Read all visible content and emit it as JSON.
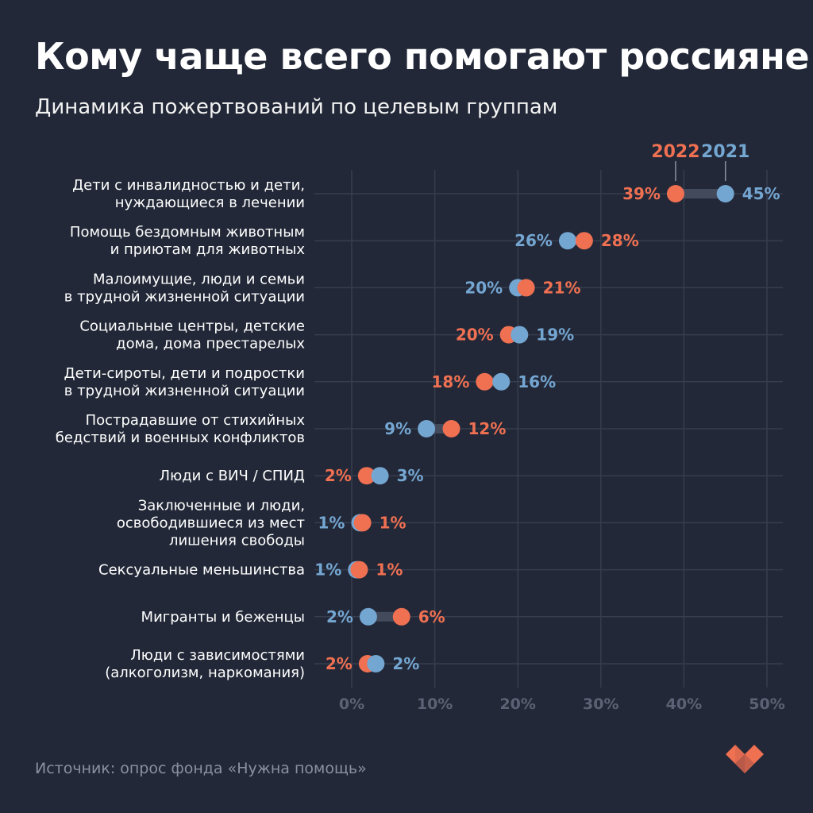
{
  "header": {
    "title": "Кому чаще всего помогают россияне",
    "subtitle": "Динамика пожертвований по целевым группам"
  },
  "footer": {
    "source": "Источник: опрос фонда «Нужна помощь»",
    "logo_icon": "heart-logo-icon"
  },
  "colors": {
    "background": "#222837",
    "series_2022": "#f07052",
    "series_2021": "#74a6d2",
    "connector": "#434a5c",
    "grid": "#363d4e",
    "tick_text": "#5b6275",
    "logo": "#f07052"
  },
  "chart_data": {
    "type": "dot-plot",
    "title": "Кому чаще всего помогают россияне",
    "subtitle": "Динамика пожертвований по целевым группам",
    "xlabel": "",
    "ylabel": "",
    "xlim": [
      0,
      50
    ],
    "x_ticks": [
      0,
      10,
      20,
      30,
      40,
      50
    ],
    "x_tick_labels": [
      "0%",
      "10%",
      "20%",
      "30%",
      "40%",
      "50%"
    ],
    "grid": true,
    "legend": {
      "placement": "top-right",
      "entries": [
        "2022",
        "2021"
      ]
    },
    "series": [
      {
        "name": "2022",
        "color": "#f07052"
      },
      {
        "name": "2021",
        "color": "#74a6d2"
      }
    ],
    "categories": [
      {
        "lines": [
          "Дети с инвалидностью и дети,",
          "нуждающиеся в лечении"
        ],
        "v2022": 39,
        "v2021": 45,
        "label2022": "39%",
        "label2021": "45%",
        "pos2022": 39,
        "pos2021": 45
      },
      {
        "lines": [
          "Помощь бездомным животным",
          "и приютам для животных"
        ],
        "v2022": 28,
        "v2021": 26,
        "label2022": "28%",
        "label2021": "26%",
        "pos2022": 28,
        "pos2021": 26
      },
      {
        "lines": [
          "Малоимущие, люди и семьи",
          "в трудной жизненной ситуации"
        ],
        "v2022": 21,
        "v2021": 20,
        "label2022": "21%",
        "label2021": "20%",
        "pos2022": 21,
        "pos2021": 20
      },
      {
        "lines": [
          "Социальные центры, детские",
          "дома, дома престарелых"
        ],
        "v2022": 20,
        "v2021": 19,
        "label2022": "20%",
        "label2021": "19%",
        "pos2022": 18.9,
        "pos2021": 20.2
      },
      {
        "lines": [
          "Дети-сироты, дети и подростки",
          "в трудной жизненной ситуации"
        ],
        "v2022": 18,
        "v2021": 16,
        "label2022": "18%",
        "label2021": "16%",
        "pos2022": 16,
        "pos2021": 18
      },
      {
        "lines": [
          "Пострадавшие от стихийных",
          "бедствий и военных конфликтов"
        ],
        "v2022": 12,
        "v2021": 9,
        "label2022": "12%",
        "label2021": "9%",
        "pos2022": 12,
        "pos2021": 9
      },
      {
        "lines": [
          "Люди с ВИЧ / СПИД"
        ],
        "v2022": 2,
        "v2021": 3,
        "label2022": "2%",
        "label2021": "3%",
        "pos2022": 1.8,
        "pos2021": 3.4
      },
      {
        "lines": [
          "Заключенные и люди,",
          "освободившиеся из мест",
          "лишения свободы"
        ],
        "v2022": 1,
        "v2021": 1,
        "label2022": "1%",
        "label2021": "1%",
        "pos2022": 1.3,
        "pos2021": 1.0
      },
      {
        "lines": [
          "Сексуальные меньшинства"
        ],
        "v2022": 1,
        "v2021": 1,
        "label2022": "1%",
        "label2021": "1%",
        "pos2022": 0.9,
        "pos2021": 0.6
      },
      {
        "lines": [
          "Мигранты и беженцы"
        ],
        "v2022": 6,
        "v2021": 2,
        "label2022": "6%",
        "label2021": "2%",
        "pos2022": 6,
        "pos2021": 2
      },
      {
        "lines": [
          "Люди с зависимостями",
          "(алкоголизм, наркомания)"
        ],
        "v2022": 2,
        "v2021": 2,
        "label2022": "2%",
        "label2021": "2%",
        "pos2022": 1.9,
        "pos2021": 2.9
      }
    ]
  }
}
